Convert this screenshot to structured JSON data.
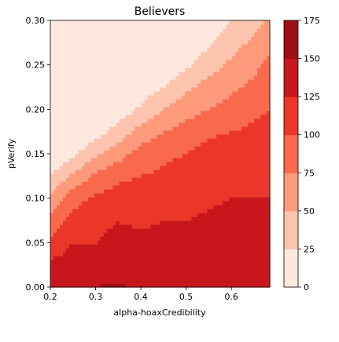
{
  "chart_data": {
    "type": "heatmap",
    "subtype": "filled-contour",
    "title": "Believers",
    "xlabel": "alpha-hoaxCredibility",
    "ylabel": "pVerify",
    "xlim": [
      0.2,
      0.685
    ],
    "ylim": [
      0.0,
      0.3
    ],
    "x_ticks": [
      "0.2",
      "0.3",
      "0.4",
      "0.5",
      "0.6"
    ],
    "y_ticks": [
      "0.00",
      "0.05",
      "0.10",
      "0.15",
      "0.20",
      "0.25",
      "0.30"
    ],
    "colormap": "Reds",
    "colorbar": {
      "levels": [
        0,
        25,
        50,
        75,
        100,
        125,
        150,
        175
      ],
      "tick_labels": [
        "0",
        "25",
        "50",
        "75",
        "100",
        "125",
        "150",
        "175"
      ],
      "colors": [
        "#fee8de",
        "#fcc4ad",
        "#fc9a7b",
        "#f9694c",
        "#eb372a",
        "#c8171c",
        "#a10e15",
        "#770611"
      ]
    },
    "x_values": [
      0.2,
      0.25,
      0.3,
      0.35,
      0.4,
      0.45,
      0.5,
      0.55,
      0.6,
      0.65,
      0.685
    ],
    "y_values": [
      0.0,
      0.025,
      0.05,
      0.075,
      0.1,
      0.125,
      0.15,
      0.175,
      0.2,
      0.225,
      0.25,
      0.275,
      0.3
    ],
    "z": [
      [
        140,
        140,
        150,
        155,
        145,
        140,
        150,
        140,
        140,
        140,
        140
      ],
      [
        130,
        135,
        140,
        135,
        130,
        135,
        145,
        150,
        145,
        140,
        145
      ],
      [
        110,
        125,
        125,
        130,
        135,
        130,
        135,
        140,
        140,
        140,
        135
      ],
      [
        80,
        110,
        120,
        125,
        120,
        125,
        125,
        130,
        135,
        130,
        130
      ],
      [
        55,
        90,
        105,
        110,
        115,
        115,
        115,
        120,
        125,
        125,
        125
      ],
      [
        25,
        55,
        80,
        95,
        100,
        105,
        110,
        115,
        120,
        120,
        120
      ],
      [
        0,
        20,
        45,
        65,
        85,
        95,
        100,
        110,
        115,
        115,
        115
      ],
      [
        0,
        0,
        15,
        35,
        60,
        75,
        85,
        95,
        100,
        105,
        110
      ],
      [
        0,
        0,
        0,
        10,
        30,
        50,
        65,
        75,
        85,
        95,
        100
      ],
      [
        0,
        0,
        0,
        0,
        10,
        25,
        45,
        60,
        70,
        80,
        90
      ],
      [
        0,
        0,
        0,
        0,
        0,
        5,
        20,
        40,
        55,
        70,
        80
      ],
      [
        0,
        0,
        0,
        0,
        0,
        0,
        5,
        20,
        40,
        55,
        70
      ],
      [
        0,
        0,
        0,
        0,
        0,
        0,
        0,
        5,
        25,
        40,
        55
      ]
    ]
  }
}
